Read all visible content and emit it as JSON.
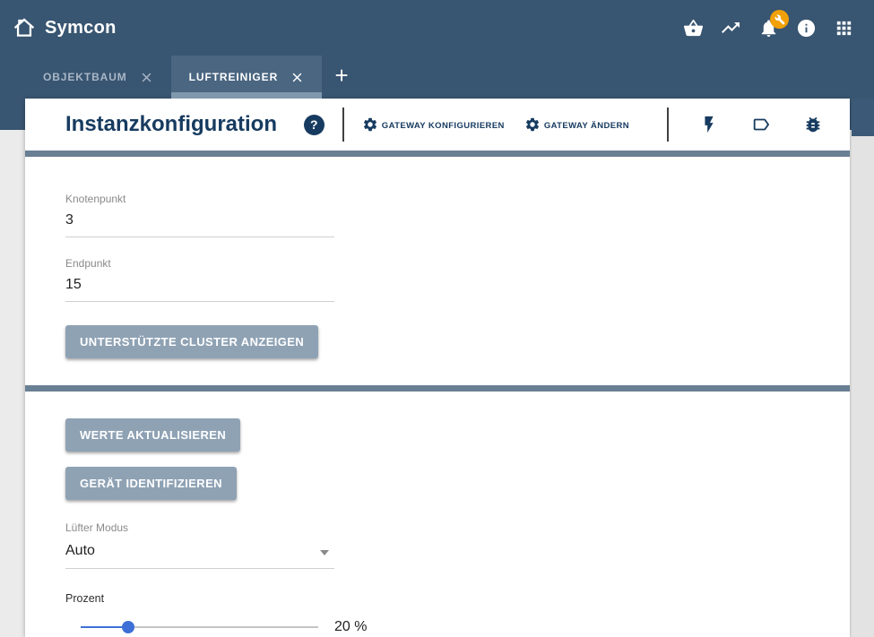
{
  "colors": {
    "topbar_bg": "#385571",
    "active_tab_bg": "#4a6681",
    "active_tab_strip": "#8098ad",
    "divider_bar": "#697f93",
    "navy_accent": "#173b60",
    "button_bg": "#8fa2b4",
    "slider_accent": "#3d6fd6",
    "badge_orange": "#f2a007",
    "scroll_thumb": "#3c5a77"
  },
  "topbar": {
    "app_name": "Symcon",
    "icons": [
      "home-icon",
      "shopping-basket-icon",
      "trending-icon",
      "notifications-bell-icon",
      "wrench-badge-icon",
      "info-icon",
      "apps-grid-icon"
    ]
  },
  "tabs": {
    "items": [
      {
        "label": "OBJEKTBAUM",
        "active": false
      },
      {
        "label": "LUFTREINIGER",
        "active": true
      }
    ],
    "add_label": "+"
  },
  "header": {
    "title": "Instanzkonfiguration",
    "help_glyph": "?",
    "gateway_configure_label": "GATEWAY KONFIGURIEREN",
    "gateway_change_label": "GATEWAY ÄNDERN",
    "icons": [
      "help-icon",
      "gear-icon",
      "gear-icon",
      "lightning-icon",
      "tag-icon",
      "bug-icon"
    ]
  },
  "section1": {
    "fields": [
      {
        "label": "Knotenpunkt",
        "value": "3"
      },
      {
        "label": "Endpunkt",
        "value": "15"
      }
    ],
    "show_clusters_button": "UNTERSTÜTZTE CLUSTER ANZEIGEN"
  },
  "section2": {
    "update_values_button": "WERTE AKTUALISIEREN",
    "identify_device_button": "GERÄT IDENTIFIZIEREN",
    "fan_mode": {
      "label": "Lüfter Modus",
      "value": "Auto"
    },
    "percent": {
      "label": "Prozent",
      "value": 20,
      "display": "20 %"
    }
  }
}
